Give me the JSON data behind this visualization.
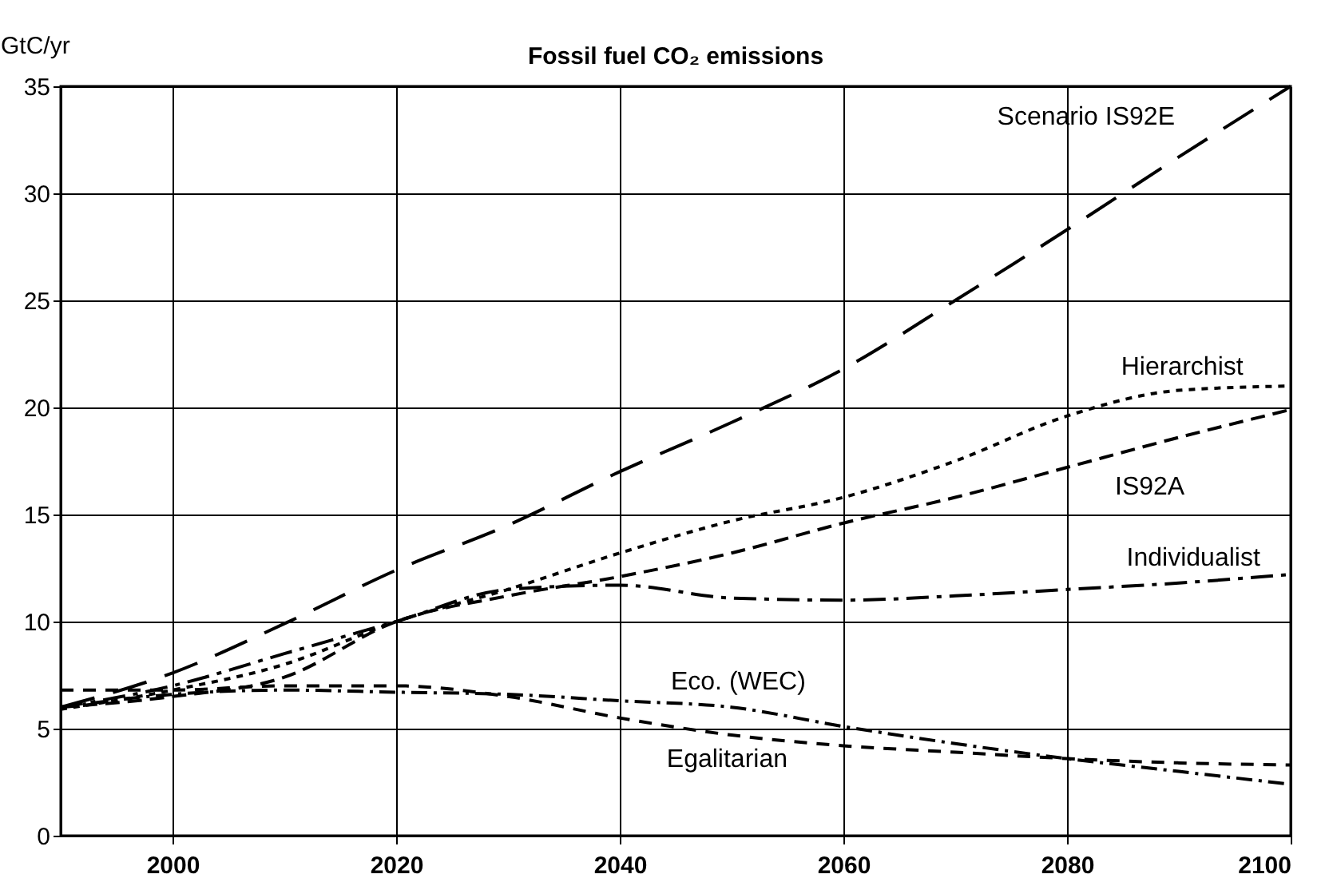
{
  "chart_data": {
    "type": "line",
    "title": "Fossil fuel CO₂ emissions",
    "ylabel": "GtC/yr",
    "x": [
      1990,
      2000,
      2010,
      2020,
      2030,
      2040,
      2050,
      2060,
      2070,
      2080,
      2090,
      2100
    ],
    "xlim": [
      1990,
      2100
    ],
    "xticks": [
      2000,
      2020,
      2040,
      2060,
      2080,
      2100
    ],
    "ylim": [
      0,
      35
    ],
    "yticks": [
      0,
      5,
      10,
      15,
      20,
      25,
      30,
      35
    ],
    "grid": true,
    "series": [
      {
        "name": "Scenario IS92E",
        "color": "#000000",
        "line_style": "dashed",
        "values": [
          6,
          7.6,
          9.9,
          12.4,
          14.5,
          17,
          19.3,
          21.8,
          25,
          28.3,
          31.7,
          35
        ]
      },
      {
        "name": "Hierarchist",
        "color": "#000000",
        "line_style": "dotted",
        "values": [
          5.9,
          6.8,
          8,
          10,
          11.5,
          13.2,
          14.7,
          15.8,
          17.5,
          19.6,
          20.8,
          21
        ]
      },
      {
        "name": "IS92A",
        "color": "#000000",
        "line_style": "dashed",
        "values": [
          6,
          6.5,
          7.4,
          10,
          11.2,
          12.1,
          13.2,
          14.6,
          15.8,
          17.2,
          18.6,
          19.9
        ]
      },
      {
        "name": "Individualist",
        "color": "#000000",
        "line_style": "dashed",
        "values": [
          6,
          7,
          8.5,
          10,
          11.5,
          11.7,
          11.1,
          11,
          11.2,
          11.5,
          11.8,
          12.2
        ]
      },
      {
        "name": "Eco. (WEC)",
        "color": "#000000",
        "line_style": "dashed",
        "values": [
          6,
          6.6,
          6.8,
          6.7,
          6.6,
          6.3,
          6,
          5.1,
          4.3,
          3.6,
          3,
          2.4
        ]
      },
      {
        "name": "Egalitarian",
        "color": "#000000",
        "line_style": "dashed",
        "values": [
          6.8,
          6.8,
          7,
          7,
          6.5,
          5.5,
          4.7,
          4.2,
          3.9,
          3.6,
          3.4,
          3.3
        ]
      }
    ]
  }
}
